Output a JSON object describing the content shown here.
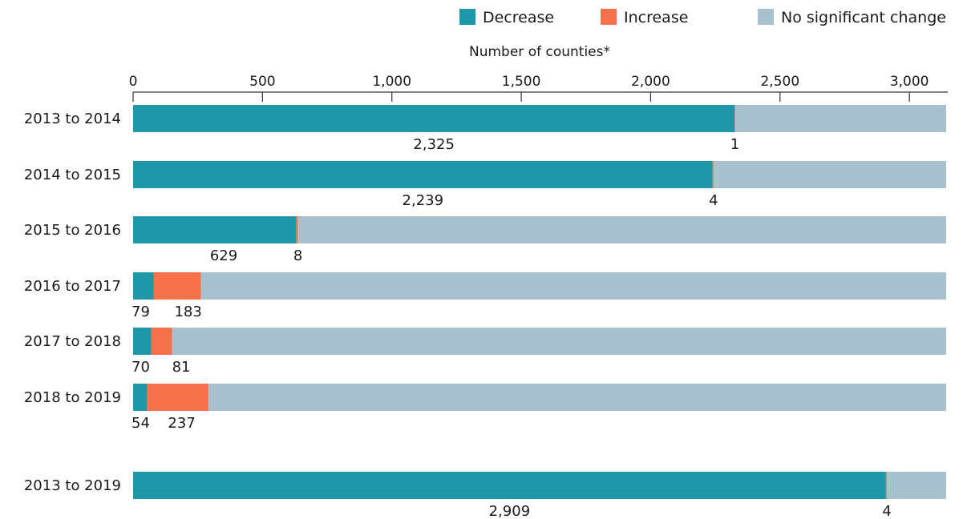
{
  "chart_data": {
    "type": "bar",
    "orientation": "horizontal",
    "stacked": true,
    "title": "",
    "xlabel": "Number of counties*",
    "ylabel": "",
    "xlim": [
      0,
      3142
    ],
    "xticks": [
      0,
      500,
      1000,
      1500,
      2000,
      2500,
      3000
    ],
    "xtick_labels": [
      "0",
      "500",
      "1,000",
      "1,500",
      "2,000",
      "2,500",
      "3,000"
    ],
    "x_axis_position": "top",
    "grid": false,
    "legend_position": "top-right",
    "categories": [
      "2013 to 2014",
      "2014 to 2015",
      "2015 to 2016",
      "2016 to 2017",
      "2017 to 2018",
      "2018 to 2019",
      "2013 to 2019"
    ],
    "series": [
      {
        "name": "Decrease",
        "color": "#1e98a8",
        "values": [
          2325,
          2239,
          629,
          79,
          70,
          54,
          2909
        ],
        "labels": [
          "2,325",
          "2,239",
          "629",
          "79",
          "70",
          "54",
          "2,909"
        ]
      },
      {
        "name": "Increase",
        "color": "#f4714a",
        "values": [
          1,
          4,
          8,
          183,
          81,
          237,
          4
        ],
        "labels": [
          "1",
          "4",
          "8",
          "183",
          "81",
          "237",
          "4"
        ]
      },
      {
        "name": "No significant change",
        "color": "#a7c1ce",
        "values": [
          816,
          899,
          2505,
          2880,
          2991,
          2851,
          229
        ]
      }
    ]
  }
}
